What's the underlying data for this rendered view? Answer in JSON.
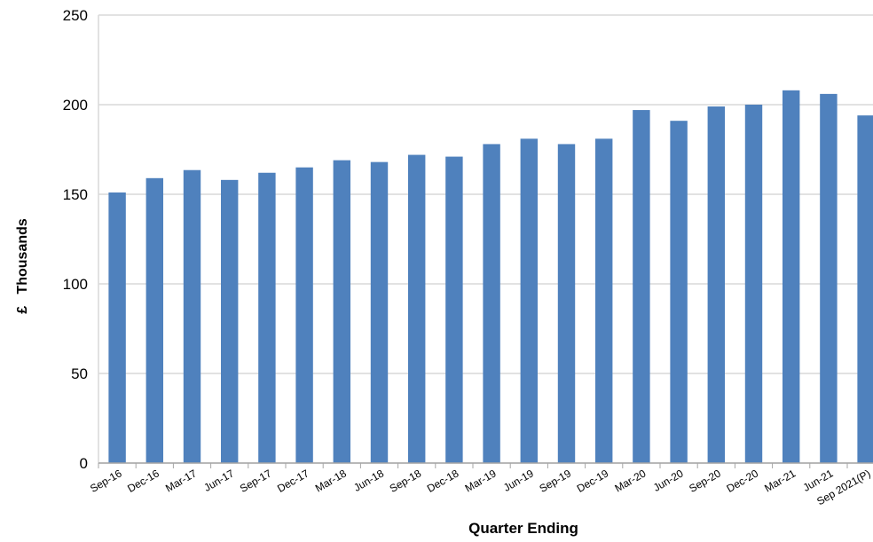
{
  "chart_data": {
    "type": "bar",
    "xlabel": "Quarter Ending",
    "ylabel": "£   Thousands",
    "categories": [
      "Sep-16",
      "Dec-16",
      "Mar-17",
      "Jun-17",
      "Sep-17",
      "Dec-17",
      "Mar-18",
      "Jun-18",
      "Sep-18",
      "Dec-18",
      "Mar-19",
      "Jun-19",
      "Sep-19",
      "Dec-19",
      "Mar-20",
      "Jun-20",
      "Sep-20",
      "Dec-20",
      "Mar-21",
      "Jun-21",
      "Sep 2021(P)"
    ],
    "values": [
      151,
      159,
      163.5,
      158,
      162,
      165,
      169,
      168,
      172,
      171,
      178,
      181,
      178,
      181,
      197,
      191,
      199,
      200,
      208,
      206,
      194
    ],
    "color": "#4f81bd",
    "ylim": [
      0,
      250
    ],
    "yticks": [
      0,
      50,
      100,
      150,
      200,
      250
    ],
    "grid": true
  }
}
